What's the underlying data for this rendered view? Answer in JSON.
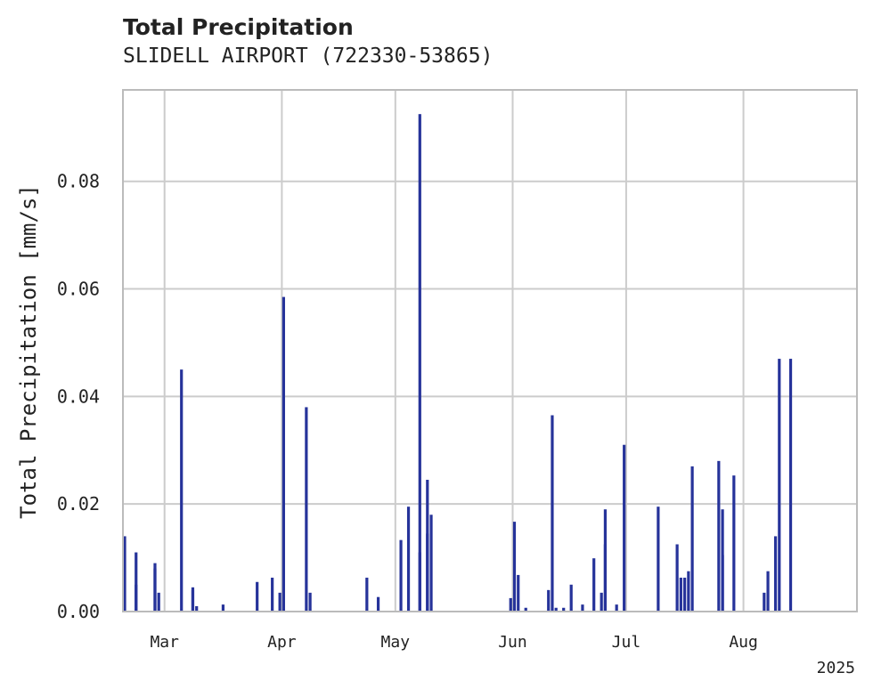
{
  "header": {
    "title": "Total Precipitation",
    "subtitle": "SLIDELL AIRPORT (722330-53865)"
  },
  "colors": {
    "bar": "#26339a",
    "grid": "#cccccc",
    "axis": "#bbbbbb"
  },
  "chart_data": {
    "type": "bar",
    "title": "Total Precipitation",
    "subtitle": "SLIDELL AIRPORT (722330-53865)",
    "xlabel": "",
    "ylabel": "Total Precipitation [mm/s]",
    "year_label": "2025",
    "grid": true,
    "xlim": [
      "2025-02-18",
      "2025-08-31"
    ],
    "ylim": [
      0,
      0.097
    ],
    "yticks": [
      0.0,
      0.02,
      0.04,
      0.06,
      0.08
    ],
    "ytick_labels": [
      "0.00",
      "0.02",
      "0.04",
      "0.06",
      "0.08"
    ],
    "xticks": [
      "2025-03-01",
      "2025-04-01",
      "2025-05-01",
      "2025-06-01",
      "2025-07-01",
      "2025-08-01"
    ],
    "xtick_labels": [
      "Mar",
      "Apr",
      "May",
      "Jun",
      "Jul",
      "Aug"
    ],
    "x": [
      "2025-02-18",
      "2025-02-21",
      "2025-02-21",
      "2025-02-26",
      "2025-02-26",
      "2025-02-27",
      "2025-03-05",
      "2025-03-08",
      "2025-03-08",
      "2025-03-09",
      "2025-03-16",
      "2025-03-25",
      "2025-03-29",
      "2025-03-31",
      "2025-04-01",
      "2025-04-07",
      "2025-04-08",
      "2025-04-23",
      "2025-04-26",
      "2025-05-02",
      "2025-05-04",
      "2025-05-07",
      "2025-05-07",
      "2025-05-09",
      "2025-05-09",
      "2025-05-10",
      "2025-05-31",
      "2025-06-01",
      "2025-06-02",
      "2025-06-04",
      "2025-06-10",
      "2025-06-11",
      "2025-06-12",
      "2025-06-14",
      "2025-06-16",
      "2025-06-19",
      "2025-06-22",
      "2025-06-24",
      "2025-06-25",
      "2025-06-25",
      "2025-06-28",
      "2025-06-30",
      "2025-07-09",
      "2025-07-14",
      "2025-07-15",
      "2025-07-16",
      "2025-07-17",
      "2025-07-18",
      "2025-07-25",
      "2025-07-26",
      "2025-07-26",
      "2025-07-29",
      "2025-08-06",
      "2025-08-07",
      "2025-08-09",
      "2025-08-10",
      "2025-08-13"
    ],
    "series": [
      {
        "values": [
          0.014,
          0.011,
          0.005,
          0.009,
          0.008,
          0.0035,
          0.045,
          0.0045,
          0.004,
          0.001,
          0.0013,
          0.0055,
          0.0063,
          0.0035,
          0.0585,
          0.038,
          0.0035,
          0.0063,
          0.0027,
          0.0133,
          0.0195,
          0.0925,
          0.011,
          0.0145,
          0.0245,
          0.018,
          0.0025,
          0.0167,
          0.0068,
          0.0007,
          0.004,
          0.0365,
          0.0007,
          0.0007,
          0.005,
          0.0013,
          0.0099,
          0.0035,
          0.019,
          0.0125,
          0.0013,
          0.031,
          0.0195,
          0.0125,
          0.0063,
          0.0063,
          0.0075,
          0.027,
          0.028,
          0.019,
          0.0105,
          0.0253,
          0.0035,
          0.0075,
          0.014,
          0.047,
          0.047
        ]
      }
    ]
  }
}
